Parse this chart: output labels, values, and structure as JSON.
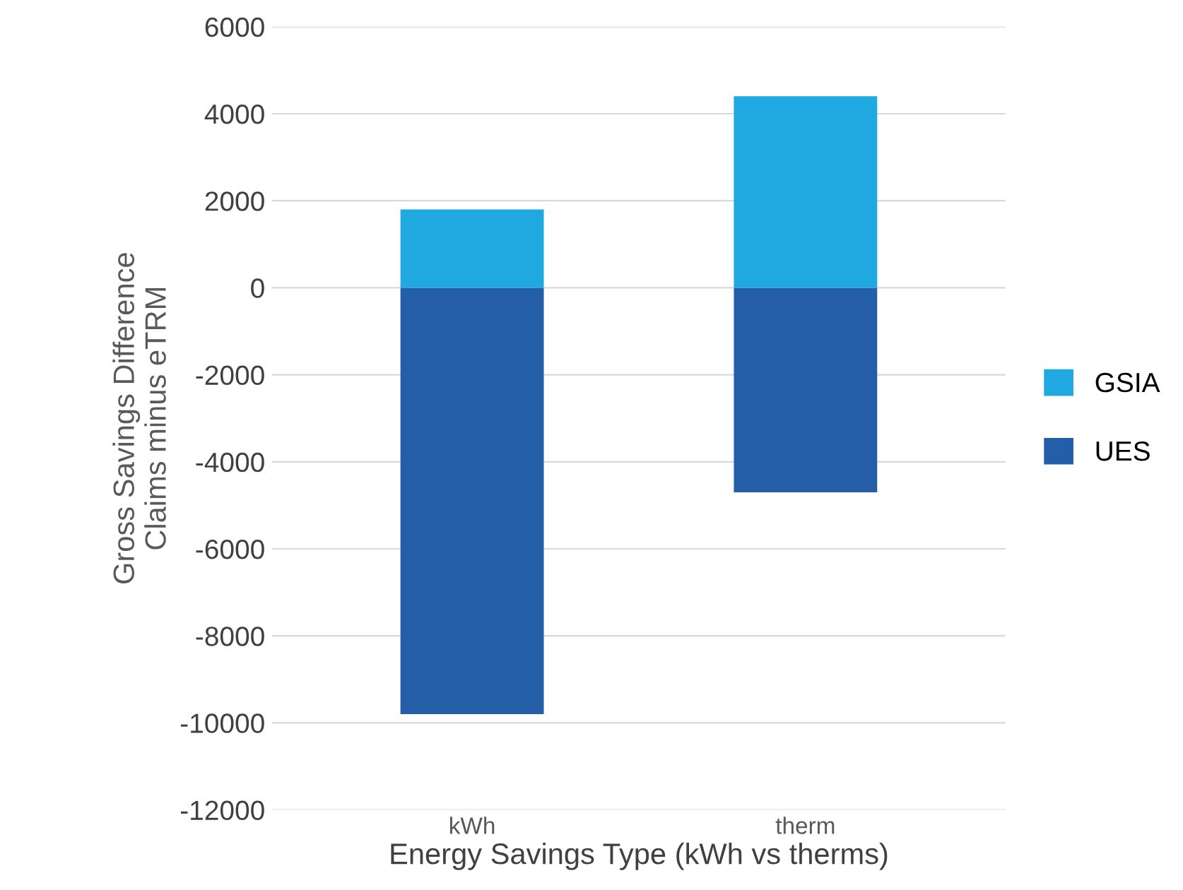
{
  "chart_data": {
    "type": "bar",
    "stacked": true,
    "xlabel": "Energy Savings Type (kWh vs therms)",
    "ylabel": "Gross Savings Difference\nClaims minus eTRM",
    "categories": [
      "kWh",
      "therm"
    ],
    "series": [
      {
        "name": "UES",
        "color": "#255ea8",
        "values": [
          -9800,
          -4700
        ]
      },
      {
        "name": "GSIA",
        "color": "#1fa9e0",
        "values": [
          1800,
          4400
        ]
      }
    ],
    "ylim": [
      -12000,
      6000
    ],
    "yticks": [
      -12000,
      -10000,
      -8000,
      -6000,
      -4000,
      -2000,
      0,
      2000,
      4000,
      6000
    ],
    "grid": "y",
    "legend": "right"
  }
}
